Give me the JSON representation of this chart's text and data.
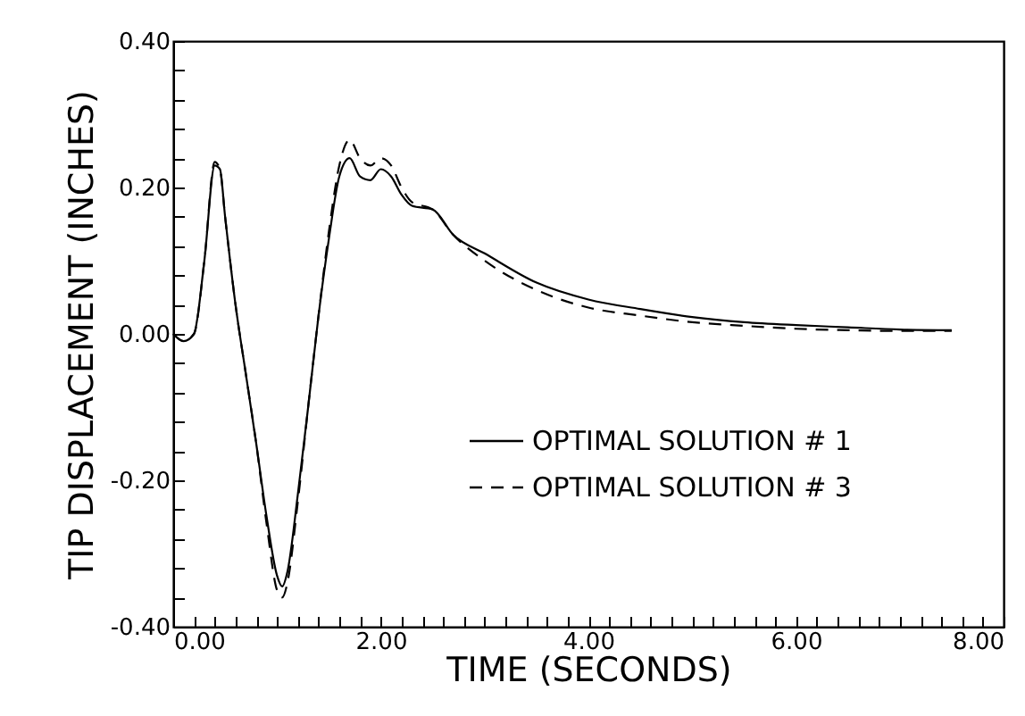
{
  "chart_data": {
    "type": "line",
    "xlabel": "TIME  (SECONDS)",
    "ylabel": "TIP  DISPLACEMENT  (INCHES)",
    "xlim": [
      0,
      8
    ],
    "ylim": [
      -0.4,
      0.4
    ],
    "xticks": [
      {
        "value": 0,
        "label": "0.00"
      },
      {
        "value": 0.2,
        "label": null
      },
      {
        "value": 0.4,
        "label": null
      },
      {
        "value": 0.6,
        "label": null
      },
      {
        "value": 0.8,
        "label": null
      },
      {
        "value": 1,
        "label": null
      },
      {
        "value": 1.2,
        "label": null
      },
      {
        "value": 1.4,
        "label": null
      },
      {
        "value": 1.6,
        "label": null
      },
      {
        "value": 1.8,
        "label": null
      },
      {
        "value": 2,
        "label": "2.00"
      },
      {
        "value": 2.2,
        "label": null
      },
      {
        "value": 2.4,
        "label": null
      },
      {
        "value": 2.6,
        "label": null
      },
      {
        "value": 2.8,
        "label": null
      },
      {
        "value": 3,
        "label": null
      },
      {
        "value": 3.2,
        "label": null
      },
      {
        "value": 3.4,
        "label": null
      },
      {
        "value": 3.6,
        "label": null
      },
      {
        "value": 3.8,
        "label": null
      },
      {
        "value": 4,
        "label": "4.00"
      },
      {
        "value": 4.2,
        "label": null
      },
      {
        "value": 4.4,
        "label": null
      },
      {
        "value": 4.6,
        "label": null
      },
      {
        "value": 4.8,
        "label": null
      },
      {
        "value": 5,
        "label": null
      },
      {
        "value": 5.2,
        "label": null
      },
      {
        "value": 5.4,
        "label": null
      },
      {
        "value": 5.6,
        "label": null
      },
      {
        "value": 5.8,
        "label": null
      },
      {
        "value": 6,
        "label": "6.00"
      },
      {
        "value": 6.2,
        "label": null
      },
      {
        "value": 6.4,
        "label": null
      },
      {
        "value": 6.6,
        "label": null
      },
      {
        "value": 6.8,
        "label": null
      },
      {
        "value": 7,
        "label": null
      },
      {
        "value": 7.2,
        "label": null
      },
      {
        "value": 7.4,
        "label": null
      },
      {
        "value": 7.6,
        "label": null
      },
      {
        "value": 7.8,
        "label": null
      },
      {
        "value": 8,
        "label": "8.00"
      }
    ],
    "yticks": [
      {
        "value": -0.4,
        "label": "-0.40"
      },
      {
        "value": -0.36,
        "label": null
      },
      {
        "value": -0.32,
        "label": null
      },
      {
        "value": -0.28,
        "label": null
      },
      {
        "value": -0.24,
        "label": null
      },
      {
        "value": -0.2,
        "label": "-0.20"
      },
      {
        "value": -0.16,
        "label": null
      },
      {
        "value": -0.12,
        "label": null
      },
      {
        "value": -0.08,
        "label": null
      },
      {
        "value": -0.04,
        "label": null
      },
      {
        "value": 0,
        "label": "0.00"
      },
      {
        "value": 0.04,
        "label": null
      },
      {
        "value": 0.08,
        "label": null
      },
      {
        "value": 0.12,
        "label": null
      },
      {
        "value": 0.16,
        "label": null
      },
      {
        "value": 0.2,
        "label": "0.20"
      },
      {
        "value": 0.24,
        "label": null
      },
      {
        "value": 0.28,
        "label": null
      },
      {
        "value": 0.32,
        "label": null
      },
      {
        "value": 0.36,
        "label": null
      },
      {
        "value": 0.4,
        "label": "0.40"
      }
    ],
    "x": [
      0,
      0.1,
      0.2,
      0.3,
      0.4,
      0.45,
      0.5,
      0.6,
      0.7,
      0.8,
      0.9,
      1.0,
      1.05,
      1.1,
      1.2,
      1.3,
      1.4,
      1.5,
      1.6,
      1.7,
      1.8,
      1.9,
      2.0,
      2.1,
      2.2,
      2.3,
      2.5,
      2.7,
      3.0,
      3.5,
      4.0,
      4.5,
      5.0,
      5.5,
      6.0,
      6.5,
      7.0,
      7.5
    ],
    "grid": false,
    "legend": "bottom right",
    "series": [
      {
        "name": "OPTIMAL  SOLUTION  #  1",
        "color": "#000000",
        "line_style": "solid",
        "values": [
          0,
          -0.01,
          0,
          0.1,
          0.23,
          0.225,
          0.16,
          0.04,
          -0.055,
          -0.15,
          -0.25,
          -0.33,
          -0.345,
          -0.325,
          -0.22,
          -0.1,
          0.025,
          0.13,
          0.215,
          0.24,
          0.215,
          0.21,
          0.225,
          0.215,
          0.19,
          0.175,
          0.17,
          0.135,
          0.11,
          0.07,
          0.047,
          0.034,
          0.023,
          0.016,
          0.012,
          0.009,
          0.006,
          0.005
        ]
      },
      {
        "name": "OPTIMAL  SOLUTION  #  3",
        "color": "#000000",
        "line_style": "dashed",
        "values": [
          0,
          -0.01,
          0,
          0.1,
          0.235,
          0.225,
          0.16,
          0.04,
          -0.055,
          -0.15,
          -0.26,
          -0.35,
          -0.36,
          -0.34,
          -0.23,
          -0.1,
          0.025,
          0.14,
          0.23,
          0.265,
          0.24,
          0.23,
          0.24,
          0.23,
          0.2,
          0.18,
          0.17,
          0.135,
          0.1,
          0.06,
          0.036,
          0.025,
          0.016,
          0.011,
          0.007,
          0.005,
          0.004,
          0.004
        ]
      }
    ]
  }
}
